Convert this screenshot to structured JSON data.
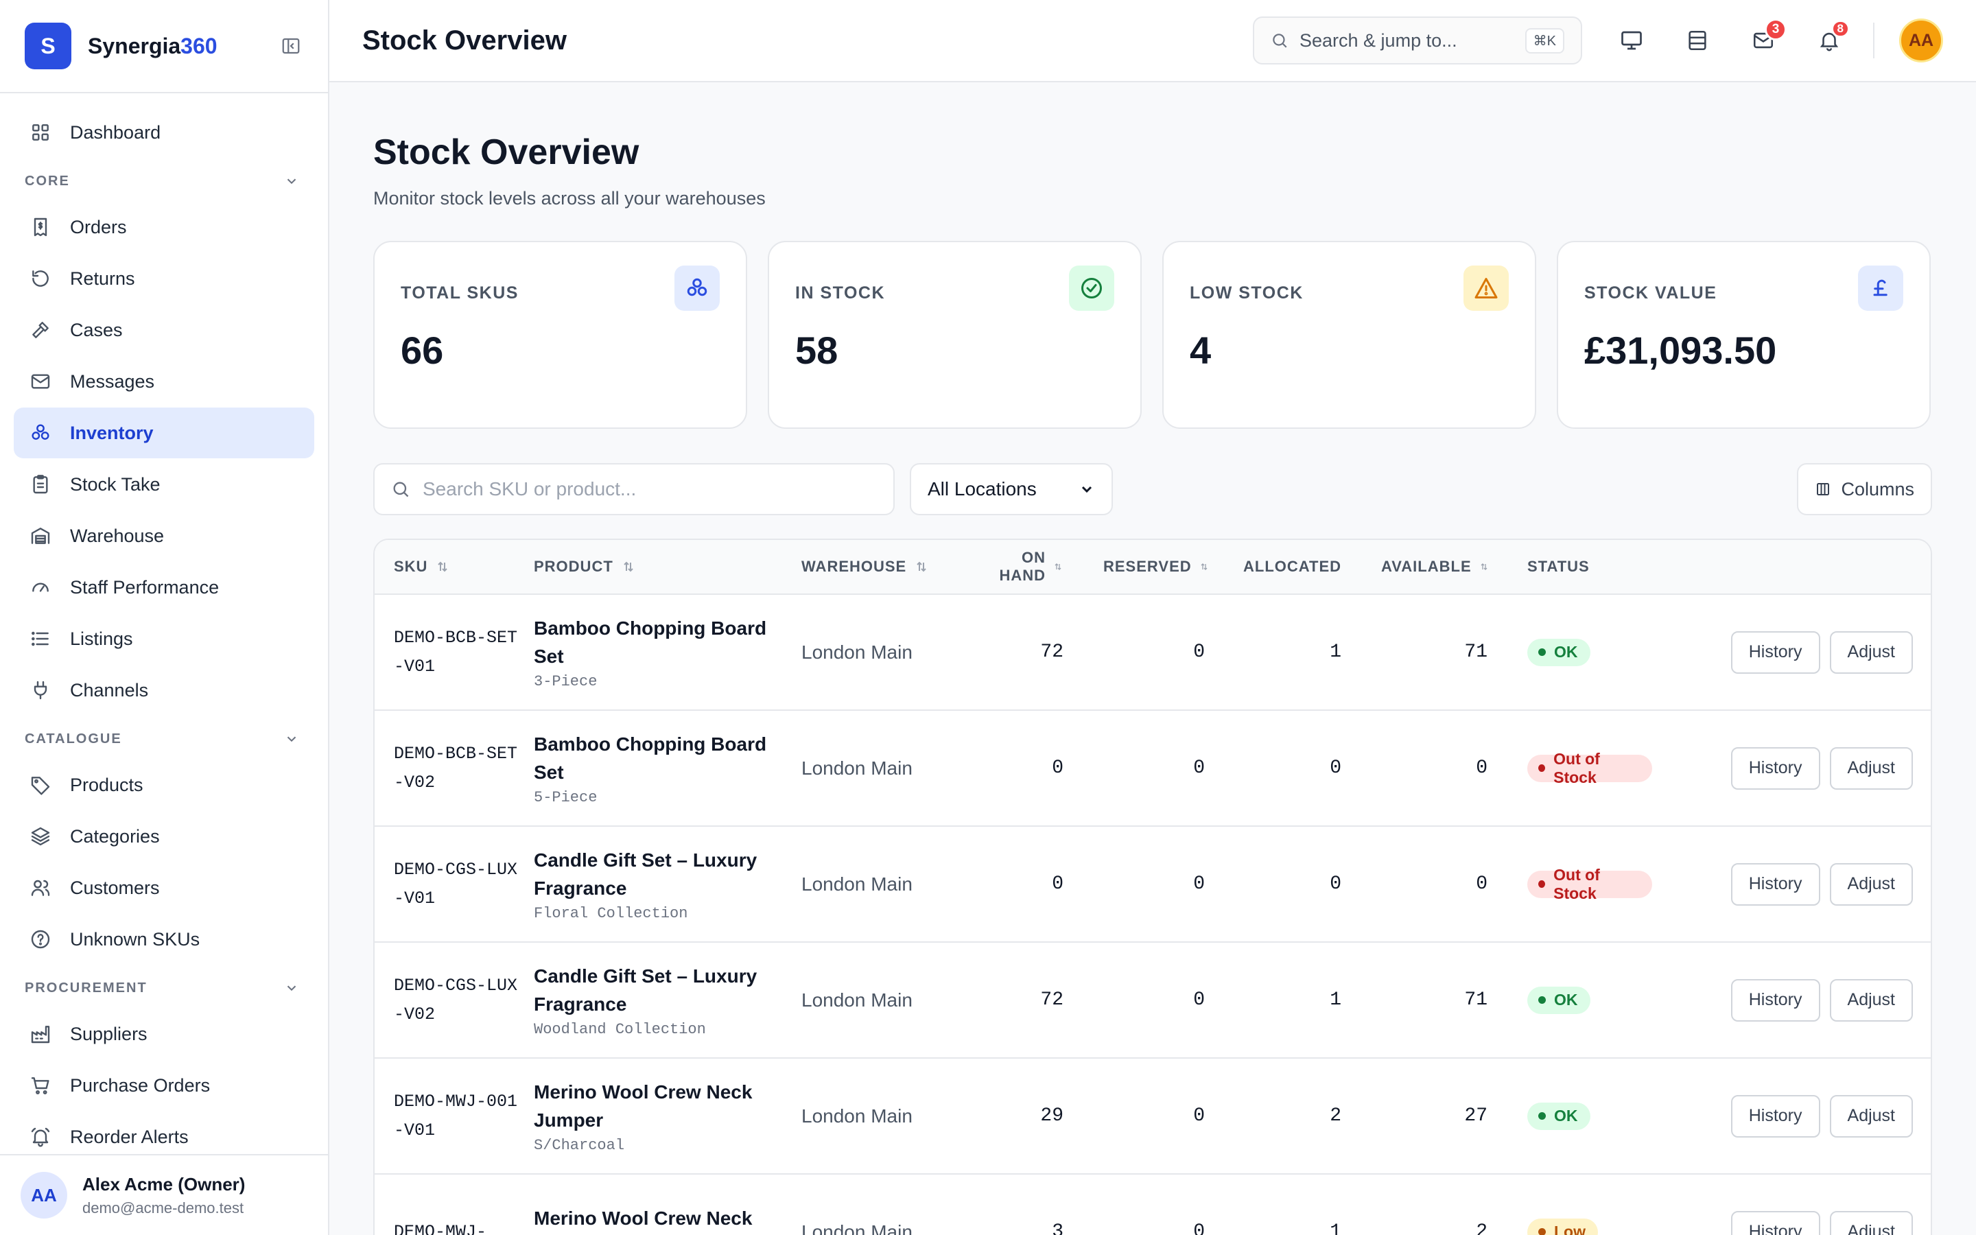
{
  "brand": {
    "logo_letter": "S",
    "name_prefix": "Synergia",
    "name_suffix": "360"
  },
  "sidebar": {
    "top_items": [
      {
        "label": "Dashboard",
        "icon": "grid-icon"
      }
    ],
    "sections": [
      {
        "label": "CORE",
        "items": [
          {
            "label": "Orders",
            "icon": "receipt-icon"
          },
          {
            "label": "Returns",
            "icon": "undo-icon"
          },
          {
            "label": "Cases",
            "icon": "gavel-icon"
          },
          {
            "label": "Messages",
            "icon": "mail-icon"
          },
          {
            "label": "Inventory",
            "icon": "boxes-icon",
            "active": true
          },
          {
            "label": "Stock Take",
            "icon": "clipboard-icon"
          },
          {
            "label": "Warehouse",
            "icon": "warehouse-icon"
          },
          {
            "label": "Staff Performance",
            "icon": "gauge-icon"
          },
          {
            "label": "Listings",
            "icon": "list-icon"
          },
          {
            "label": "Channels",
            "icon": "plug-icon"
          }
        ]
      },
      {
        "label": "CATALOGUE",
        "items": [
          {
            "label": "Products",
            "icon": "tag-icon"
          },
          {
            "label": "Categories",
            "icon": "layers-icon"
          },
          {
            "label": "Customers",
            "icon": "users-icon"
          },
          {
            "label": "Unknown SKUs",
            "icon": "question-icon"
          }
        ]
      },
      {
        "label": "PROCUREMENT",
        "items": [
          {
            "label": "Suppliers",
            "icon": "factory-icon"
          },
          {
            "label": "Purchase Orders",
            "icon": "cart-icon"
          },
          {
            "label": "Reorder Alerts",
            "icon": "bell-ring-icon"
          }
        ]
      }
    ],
    "user": {
      "initials": "AA",
      "name": "Alex Acme (Owner)",
      "email": "demo@acme-demo.test"
    }
  },
  "topbar": {
    "title": "Stock Overview",
    "search_label": "Search & jump to...",
    "shortcut": "⌘K",
    "mail_count": "3",
    "notif_count": "8",
    "avatar": "AA"
  },
  "page": {
    "title": "Stock Overview",
    "subtitle": "Monitor stock levels across all your warehouses"
  },
  "stats": [
    {
      "label": "TOTAL SKUS",
      "value": "66",
      "icon": "boxes-icon",
      "color": "#2b4ee0",
      "bg": "#e3ebfe"
    },
    {
      "label": "IN STOCK",
      "value": "58",
      "icon": "check-circle-icon",
      "color": "#15803d",
      "bg": "#dcfce7"
    },
    {
      "label": "LOW STOCK",
      "value": "4",
      "icon": "warning-icon",
      "color": "#d97706",
      "bg": "#fef3c7"
    },
    {
      "label": "STOCK VALUE",
      "value": "£31,093.50",
      "icon": "pound-icon",
      "color": "#2b4ee0",
      "bg": "#e3ebfe"
    }
  ],
  "filters": {
    "search_placeholder": "Search SKU or product...",
    "location": "All Locations",
    "columns_label": "Columns"
  },
  "table": {
    "headers": {
      "sku": "SKU",
      "product": "PRODUCT",
      "warehouse": "WAREHOUSE",
      "on_hand": "ON HAND",
      "reserved": "RESERVED",
      "allocated": "ALLOCATED",
      "available": "AVAILABLE",
      "status": "STATUS"
    },
    "rows": [
      {
        "sku": "DEMO-BCB-SET-V01",
        "product": "Bamboo Chopping Board Set",
        "variant": "3-Piece",
        "warehouse": "London Main",
        "on_hand": "72",
        "reserved": "0",
        "allocated": "1",
        "available": "71",
        "status": "OK",
        "status_type": "ok"
      },
      {
        "sku": "DEMO-BCB-SET-V02",
        "product": "Bamboo Chopping Board Set",
        "variant": "5-Piece",
        "warehouse": "London Main",
        "on_hand": "0",
        "reserved": "0",
        "allocated": "0",
        "available": "0",
        "status": "Out of Stock",
        "status_type": "out"
      },
      {
        "sku": "DEMO-CGS-LUX-V01",
        "product": "Candle Gift Set – Luxury Fragrance",
        "variant": "Floral Collection",
        "warehouse": "London Main",
        "on_hand": "0",
        "reserved": "0",
        "allocated": "0",
        "available": "0",
        "status": "Out of Stock",
        "status_type": "out"
      },
      {
        "sku": "DEMO-CGS-LUX-V02",
        "product": "Candle Gift Set – Luxury Fragrance",
        "variant": "Woodland Collection",
        "warehouse": "London Main",
        "on_hand": "72",
        "reserved": "0",
        "allocated": "1",
        "available": "71",
        "status": "OK",
        "status_type": "ok"
      },
      {
        "sku": "DEMO-MWJ-001-V01",
        "product": "Merino Wool Crew Neck Jumper",
        "variant": "S/Charcoal",
        "warehouse": "London Main",
        "on_hand": "29",
        "reserved": "0",
        "allocated": "2",
        "available": "27",
        "status": "OK",
        "status_type": "ok"
      },
      {
        "sku": "DEMO-MWJ-",
        "product": "Merino Wool Crew Neck Jumper",
        "variant": "",
        "warehouse": "London Main",
        "on_hand": "3",
        "reserved": "0",
        "allocated": "1",
        "available": "2",
        "status": "Low",
        "status_type": "low"
      }
    ],
    "history_label": "History",
    "adjust_label": "Adjust"
  }
}
